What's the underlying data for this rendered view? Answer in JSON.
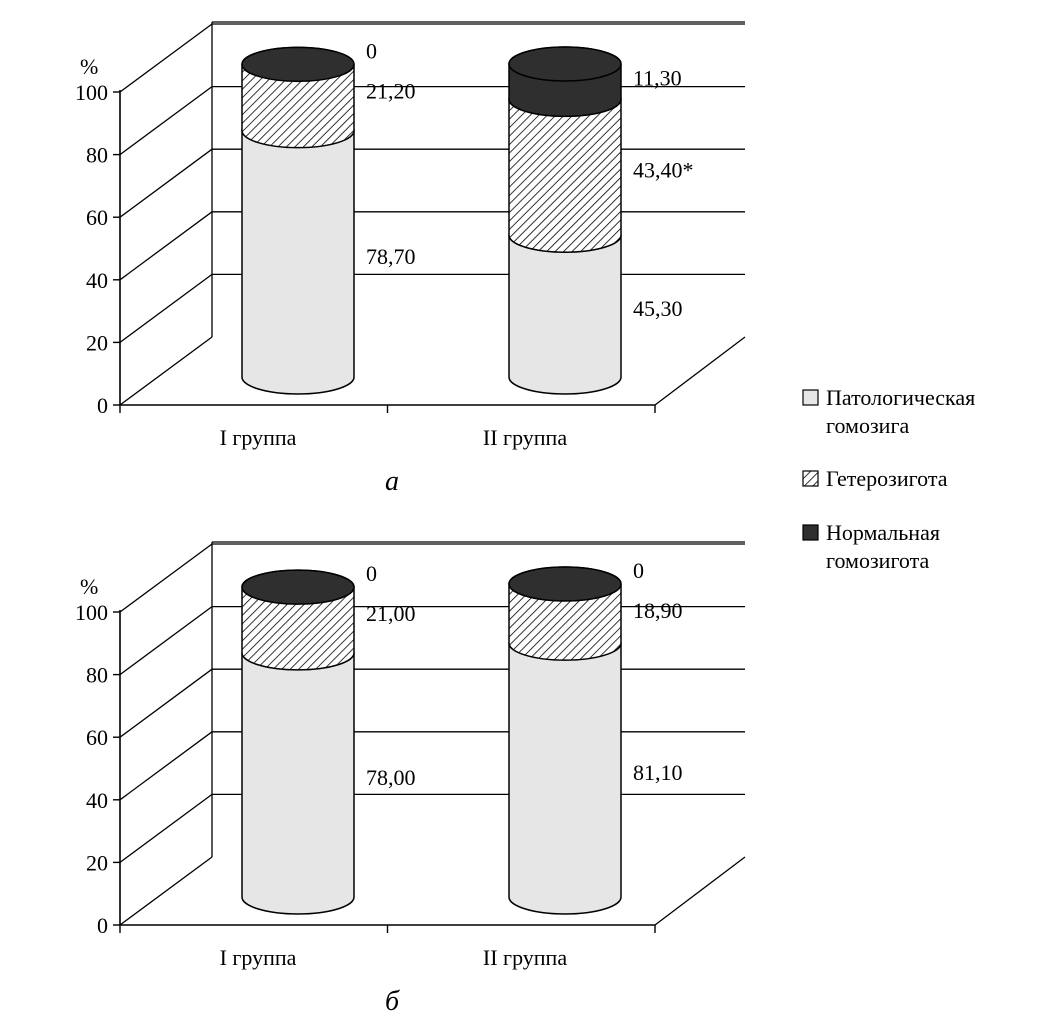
{
  "legend": [
    {
      "lines": [
        "Патологическая",
        "гомозига"
      ],
      "pattern": "light"
    },
    {
      "lines": [
        "Гетерозигота"
      ],
      "pattern": "hatch"
    },
    {
      "lines": [
        "Нормальная",
        "гомозигота"
      ],
      "pattern": "dark"
    }
  ],
  "colors": {
    "light": "#e6e6e6",
    "dark": "#2f2f2f",
    "hatch_bg": "#ffffff",
    "hatch_line": "#000000"
  },
  "chart_data": [
    {
      "type": "bar",
      "subtype": "stacked-3d-cylinder",
      "panel_label": "а",
      "unit_label": "%",
      "ylim": [
        0,
        100
      ],
      "yticks": [
        0,
        20,
        40,
        60,
        80,
        100
      ],
      "categories": [
        "I группа",
        "II группа"
      ],
      "series": [
        {
          "name": "Патологическая гомозига",
          "values": [
            78.7,
            45.3
          ],
          "labels": [
            "78,70",
            "45,30"
          ]
        },
        {
          "name": "Гетерозигота",
          "values": [
            21.2,
            43.4
          ],
          "labels": [
            "21,20",
            "43,40*"
          ]
        },
        {
          "name": "Нормальная гомозигота",
          "values": [
            0,
            11.3
          ],
          "labels": [
            "0",
            "11,30"
          ]
        }
      ]
    },
    {
      "type": "bar",
      "subtype": "stacked-3d-cylinder",
      "panel_label": "б",
      "unit_label": "%",
      "ylim": [
        0,
        100
      ],
      "yticks": [
        0,
        20,
        40,
        60,
        80,
        100
      ],
      "categories": [
        "I группа",
        "II группа"
      ],
      "series": [
        {
          "name": "Патологическая гомозига",
          "values": [
            78.0,
            81.1
          ],
          "labels": [
            "78,00",
            "81,10"
          ]
        },
        {
          "name": "Гетерозигота",
          "values": [
            21.0,
            18.9
          ],
          "labels": [
            "21,00",
            "18,90"
          ]
        },
        {
          "name": "Нормальная гомозигота",
          "values": [
            0,
            0
          ],
          "labels": [
            "0",
            "0"
          ]
        }
      ]
    }
  ]
}
